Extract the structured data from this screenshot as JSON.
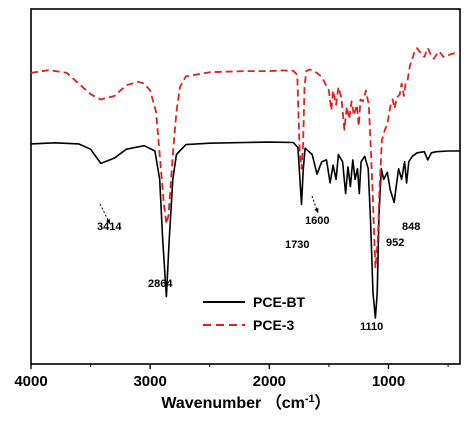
{
  "chart_data": {
    "type": "line",
    "xlabel": "Wavenumber （cm",
    "xlabel_sup": "-1",
    "xlabel_close": "）",
    "ylabel": "",
    "xlim": [
      4000,
      400
    ],
    "x_reversed": true,
    "x_ticks": [
      4000,
      3000,
      2000,
      1000
    ],
    "x_tick_labels": [
      "4000",
      "3000",
      "2000",
      "1000"
    ],
    "ylim": [
      0,
      100
    ],
    "y_ticks_shown": false,
    "grid": false,
    "legend_position": "bottom-center",
    "series": [
      {
        "name": "PCE-BT",
        "color": "#000000",
        "dash": "solid",
        "points": [
          [
            4000,
            62
          ],
          [
            3800,
            62.3
          ],
          [
            3600,
            62
          ],
          [
            3500,
            60.5
          ],
          [
            3414,
            56.5
          ],
          [
            3300,
            58
          ],
          [
            3200,
            60.5
          ],
          [
            3050,
            61.5
          ],
          [
            2960,
            60
          ],
          [
            2920,
            52
          ],
          [
            2895,
            35
          ],
          [
            2864,
            19
          ],
          [
            2840,
            35
          ],
          [
            2810,
            52
          ],
          [
            2780,
            59
          ],
          [
            2700,
            61.8
          ],
          [
            2500,
            62.2
          ],
          [
            2200,
            62.4
          ],
          [
            2000,
            62.5
          ],
          [
            1800,
            62.4
          ],
          [
            1760,
            61
          ],
          [
            1745,
            53
          ],
          [
            1730,
            45
          ],
          [
            1715,
            55
          ],
          [
            1700,
            60.8
          ],
          [
            1640,
            59
          ],
          [
            1600,
            53.5
          ],
          [
            1560,
            57
          ],
          [
            1520,
            57.5
          ],
          [
            1490,
            51
          ],
          [
            1465,
            56
          ],
          [
            1440,
            52
          ],
          [
            1420,
            59
          ],
          [
            1385,
            57
          ],
          [
            1360,
            48
          ],
          [
            1340,
            55.5
          ],
          [
            1320,
            50
          ],
          [
            1300,
            57.5
          ],
          [
            1280,
            52
          ],
          [
            1260,
            55
          ],
          [
            1245,
            48
          ],
          [
            1230,
            57
          ],
          [
            1200,
            58.5
          ],
          [
            1170,
            55
          ],
          [
            1150,
            40
          ],
          [
            1130,
            20
          ],
          [
            1110,
            13
          ],
          [
            1095,
            20
          ],
          [
            1080,
            42
          ],
          [
            1060,
            55
          ],
          [
            1040,
            52
          ],
          [
            1010,
            54
          ],
          [
            985,
            49
          ],
          [
            952,
            45.5
          ],
          [
            935,
            50
          ],
          [
            915,
            55
          ],
          [
            890,
            52
          ],
          [
            865,
            57
          ],
          [
            848,
            51
          ],
          [
            830,
            57
          ],
          [
            800,
            58.5
          ],
          [
            760,
            59.5
          ],
          [
            700,
            59.8
          ],
          [
            670,
            57.5
          ],
          [
            640,
            59.5
          ],
          [
            600,
            59.8
          ],
          [
            500,
            60
          ],
          [
            400,
            60
          ]
        ]
      },
      {
        "name": "PCE-3",
        "color": "#e02020",
        "dash": "dashed",
        "points": [
          [
            4000,
            82
          ],
          [
            3850,
            82.8
          ],
          [
            3700,
            82
          ],
          [
            3600,
            79
          ],
          [
            3500,
            76
          ],
          [
            3414,
            74.5
          ],
          [
            3300,
            75.5
          ],
          [
            3200,
            78.5
          ],
          [
            3100,
            79.5
          ],
          [
            3050,
            79
          ],
          [
            3000,
            77
          ],
          [
            2950,
            71
          ],
          [
            2910,
            55
          ],
          [
            2885,
            45
          ],
          [
            2864,
            39.5
          ],
          [
            2845,
            42
          ],
          [
            2825,
            52
          ],
          [
            2800,
            63
          ],
          [
            2780,
            71
          ],
          [
            2750,
            78
          ],
          [
            2700,
            81
          ],
          [
            2500,
            82.2
          ],
          [
            2200,
            82.5
          ],
          [
            2000,
            82.5
          ],
          [
            1900,
            82.7
          ],
          [
            1800,
            82.6
          ],
          [
            1765,
            81.5
          ],
          [
            1755,
            70
          ],
          [
            1745,
            60
          ],
          [
            1730,
            55
          ],
          [
            1717,
            62
          ],
          [
            1705,
            78
          ],
          [
            1690,
            82.5
          ],
          [
            1660,
            83
          ],
          [
            1600,
            82
          ],
          [
            1560,
            80.8
          ],
          [
            1530,
            79
          ],
          [
            1500,
            77
          ],
          [
            1480,
            71.5
          ],
          [
            1465,
            77
          ],
          [
            1440,
            73
          ],
          [
            1420,
            78
          ],
          [
            1395,
            75
          ],
          [
            1370,
            66
          ],
          [
            1350,
            72.5
          ],
          [
            1330,
            69
          ],
          [
            1310,
            74
          ],
          [
            1290,
            70
          ],
          [
            1265,
            73
          ],
          [
            1250,
            67
          ],
          [
            1235,
            74.5
          ],
          [
            1215,
            74
          ],
          [
            1190,
            77
          ],
          [
            1165,
            73
          ],
          [
            1150,
            62
          ],
          [
            1135,
            50
          ],
          [
            1110,
            27
          ],
          [
            1090,
            35
          ],
          [
            1075,
            50
          ],
          [
            1055,
            63
          ],
          [
            1030,
            66
          ],
          [
            1010,
            67.5
          ],
          [
            985,
            72.5
          ],
          [
            965,
            74.5
          ],
          [
            950,
            72
          ],
          [
            930,
            75
          ],
          [
            905,
            76
          ],
          [
            890,
            79
          ],
          [
            870,
            75.5
          ],
          [
            855,
            79.5
          ],
          [
            840,
            80
          ],
          [
            820,
            84
          ],
          [
            800,
            86
          ],
          [
            780,
            88
          ],
          [
            760,
            89
          ],
          [
            740,
            88
          ],
          [
            720,
            87.5
          ],
          [
            700,
            86.5
          ],
          [
            670,
            89
          ],
          [
            650,
            87.5
          ],
          [
            620,
            86
          ],
          [
            600,
            87
          ],
          [
            580,
            88
          ],
          [
            560,
            87.5
          ],
          [
            540,
            86.5
          ],
          [
            500,
            87
          ],
          [
            450,
            87.5
          ],
          [
            400,
            87.5
          ]
        ]
      }
    ],
    "annotations": [
      {
        "text": "3414",
        "x": 3414,
        "arrow": true
      },
      {
        "text": "2864",
        "x": 2864,
        "arrow": false
      },
      {
        "text": "1730",
        "x": 1730,
        "arrow": false
      },
      {
        "text": "1600",
        "x": 1600,
        "arrow": true
      },
      {
        "text": "1110",
        "x": 1110,
        "arrow": false
      },
      {
        "text": "952",
        "x": 952,
        "arrow": false
      },
      {
        "text": "848",
        "x": 848,
        "arrow": false
      }
    ]
  }
}
